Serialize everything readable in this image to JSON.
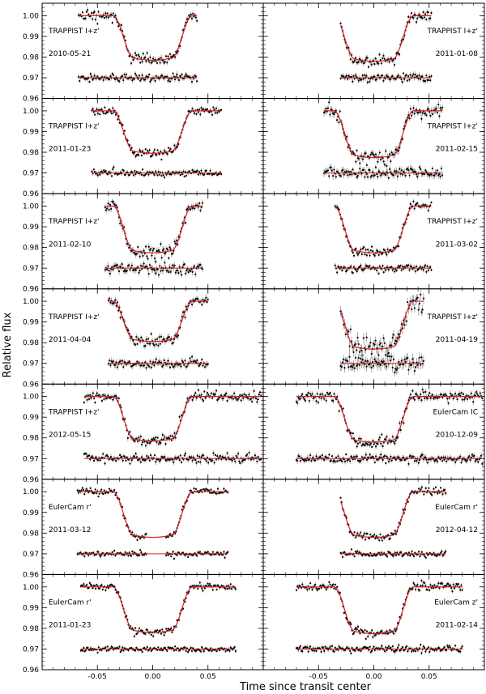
{
  "chart_data": {
    "type": "scatter",
    "xlabel": "Time since transit center",
    "ylabel": "Relative flux",
    "xlim": [
      -0.1,
      0.1
    ],
    "ylim": [
      0.96,
      1.006
    ],
    "x_ticks": [
      "-0.05",
      "0.00",
      "0.05"
    ],
    "x_tick_values": [
      -0.05,
      0.0,
      0.05
    ],
    "y_ticks": [
      "1.00",
      "0.99",
      "0.98",
      "0.97",
      "0.96"
    ],
    "y_tick_values": [
      1.0,
      0.99,
      0.98,
      0.97,
      0.96
    ],
    "model_color": "#d62020",
    "data_color": "#000000",
    "residual_offset": 0.97,
    "transit_model": {
      "depth": 0.0205,
      "t_contact1": 0.036,
      "t_contact2": 0.017
    },
    "panels": [
      {
        "instrument": "TRAPPIST I+z'",
        "date": "2010-05-21",
        "x_range": [
          -0.067,
          0.04
        ],
        "depth": 0.0205,
        "noise": 0.0012,
        "gap": null,
        "label_side": "left"
      },
      {
        "instrument": "TRAPPIST I+z'",
        "date": "2011-01-08",
        "x_range": [
          -0.03,
          0.052
        ],
        "depth": 0.021,
        "noise": 0.0013,
        "gap": null,
        "label_side": "right"
      },
      {
        "instrument": "TRAPPIST I+z'",
        "date": "2011-01-23",
        "x_range": [
          -0.055,
          0.062
        ],
        "depth": 0.0195,
        "noise": 0.001,
        "gap": null,
        "label_side": "left"
      },
      {
        "instrument": "TRAPPIST I+z'",
        "date": "2011-02-15",
        "x_range": [
          -0.045,
          0.062
        ],
        "depth": 0.0215,
        "noise": 0.0016,
        "gap": null,
        "label_side": "right"
      },
      {
        "instrument": "TRAPPIST I+z'",
        "date": "2011-02-10",
        "x_range": [
          -0.043,
          0.045
        ],
        "depth": 0.0215,
        "noise": 0.0015,
        "gap": null,
        "label_side": "left"
      },
      {
        "instrument": "TRAPPIST I+z'",
        "date": "2011-03-02",
        "x_range": [
          -0.035,
          0.052
        ],
        "depth": 0.0215,
        "noise": 0.0011,
        "gap": null,
        "label_side": "right"
      },
      {
        "instrument": "TRAPPIST I+z'",
        "date": "2011-04-04",
        "x_range": [
          -0.04,
          0.05
        ],
        "depth": 0.0185,
        "noise": 0.0014,
        "gap": null,
        "label_side": "left"
      },
      {
        "instrument": "TRAPPIST I+z'",
        "date": "2011-04-19",
        "x_range": [
          -0.03,
          0.045
        ],
        "depth": 0.022,
        "noise": 0.0025,
        "gap": null,
        "label_side": "right"
      },
      {
        "instrument": "TRAPPIST I+z'",
        "date": "2012-05-15",
        "x_range": [
          -0.062,
          0.098
        ],
        "depth": 0.0205,
        "noise": 0.0012,
        "gap": null,
        "label_side": "left"
      },
      {
        "instrument": "EulerCam IC",
        "date": "2010-12-09",
        "x_range": [
          -0.07,
          0.098
        ],
        "depth": 0.021,
        "noise": 0.0013,
        "gap": null,
        "label_side": "right"
      },
      {
        "instrument": "EulerCam r'",
        "date": "2011-03-12",
        "x_range": [
          -0.068,
          0.068
        ],
        "depth": 0.021,
        "noise": 0.0008,
        "gap": [
          -0.005,
          0.012
        ],
        "label_side": "left"
      },
      {
        "instrument": "EulerCam r'",
        "date": "2012-04-12",
        "x_range": [
          -0.03,
          0.065
        ],
        "depth": 0.021,
        "noise": 0.0009,
        "gap": null,
        "label_side": "right"
      },
      {
        "instrument": "EulerCam r'",
        "date": "2011-01-23",
        "x_range": [
          -0.065,
          0.075
        ],
        "depth": 0.021,
        "noise": 0.0008,
        "gap": null,
        "label_side": "left"
      },
      {
        "instrument": "EulerCam z'",
        "date": "2011-02-14",
        "x_range": [
          -0.07,
          0.08
        ],
        "depth": 0.0215,
        "noise": 0.001,
        "gap": null,
        "label_side": "right"
      }
    ]
  }
}
